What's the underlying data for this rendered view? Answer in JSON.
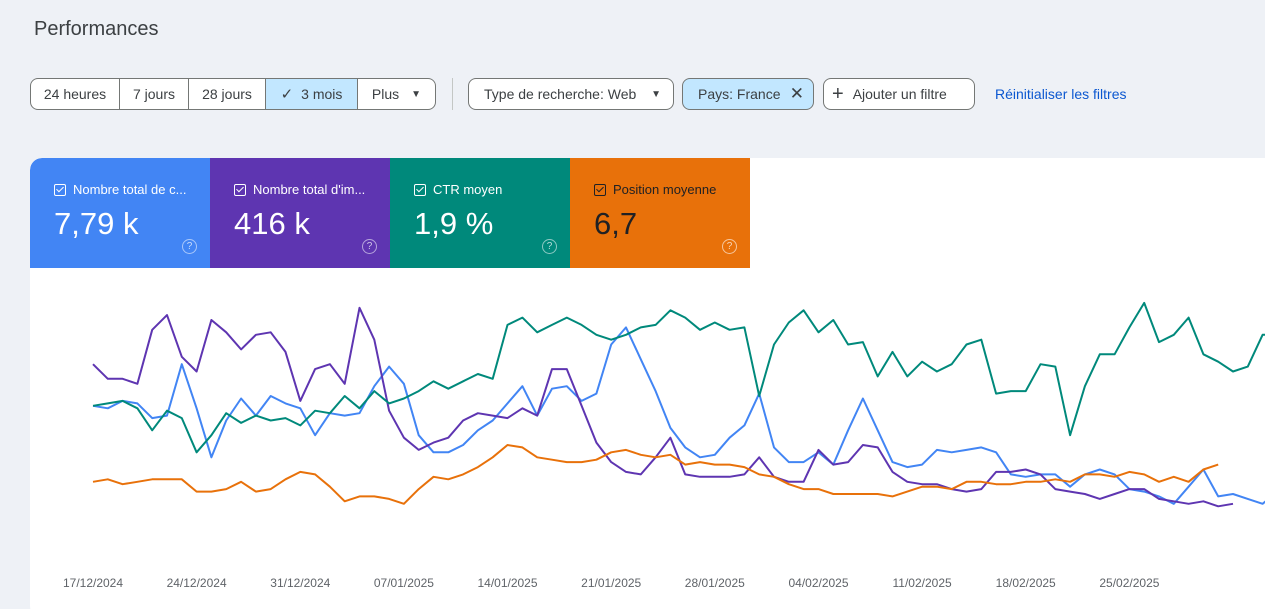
{
  "page": {
    "title": "Performances"
  },
  "date_range": {
    "options": [
      "24 heures",
      "7 jours",
      "28 jours",
      "3 mois",
      "Plus"
    ],
    "selected": "3 mois",
    "check_icon": "check-icon",
    "more_caret_icon": "caret-down-icon"
  },
  "filters": {
    "search_type_label": "Type de recherche: Web",
    "country_label": "Pays: France",
    "add_filter_label": "Ajouter un filtre",
    "reset_label": "Réinitialiser les filtres"
  },
  "metrics": [
    {
      "label": "Nombre total de c...",
      "value": "7,79 k",
      "color": "#4285f4"
    },
    {
      "label": "Nombre total d'im...",
      "value": "416 k",
      "color": "#5e35b1"
    },
    {
      "label": "CTR moyen",
      "value": "1,9 %",
      "color": "#00897b"
    },
    {
      "label": "Position moyenne",
      "value": "6,7",
      "color": "#e8710a"
    }
  ],
  "chart_data": {
    "type": "line",
    "x_tick_labels": [
      "17/12/2024",
      "24/12/2024",
      "31/12/2024",
      "07/01/2025",
      "14/01/2025",
      "21/01/2025",
      "28/01/2025",
      "04/02/2025",
      "11/02/2025",
      "18/02/2025",
      "25/02/2025"
    ],
    "series": [
      {
        "name": "Nombre total de c...",
        "color": "#4285f4",
        "values": [
          0.56,
          0.55,
          0.58,
          0.57,
          0.51,
          0.52,
          0.73,
          0.55,
          0.35,
          0.5,
          0.59,
          0.52,
          0.6,
          0.57,
          0.55,
          0.44,
          0.53,
          0.52,
          0.53,
          0.64,
          0.72,
          0.65,
          0.44,
          0.37,
          0.37,
          0.4,
          0.46,
          0.5,
          0.57,
          0.64,
          0.52,
          0.63,
          0.64,
          0.58,
          0.61,
          0.81,
          0.88,
          0.75,
          0.62,
          0.47,
          0.39,
          0.35,
          0.36,
          0.43,
          0.48,
          0.61,
          0.39,
          0.33,
          0.33,
          0.37,
          0.32,
          0.46,
          0.59,
          0.46,
          0.33,
          0.31,
          0.32,
          0.38,
          0.37,
          0.38,
          0.39,
          0.37,
          0.28,
          0.27,
          0.28,
          0.28,
          0.23,
          0.28,
          0.3,
          0.28,
          0.22,
          0.21,
          0.19,
          0.16,
          0.23,
          0.3,
          0.19,
          0.2,
          0.18,
          0.16,
          0.21
        ]
      },
      {
        "name": "Nombre total d'im...",
        "color": "#5e35b1",
        "values": [
          0.73,
          0.67,
          0.67,
          0.65,
          0.87,
          0.93,
          0.76,
          0.7,
          0.91,
          0.86,
          0.79,
          0.85,
          0.86,
          0.78,
          0.58,
          0.71,
          0.73,
          0.65,
          0.96,
          0.83,
          0.54,
          0.43,
          0.38,
          0.41,
          0.43,
          0.5,
          0.53,
          0.52,
          0.51,
          0.55,
          0.52,
          0.71,
          0.71,
          0.56,
          0.41,
          0.33,
          0.29,
          0.28,
          0.35,
          0.43,
          0.28,
          0.27,
          0.27,
          0.27,
          0.28,
          0.35,
          0.27,
          0.25,
          0.25,
          0.38,
          0.32,
          0.33,
          0.4,
          0.39,
          0.29,
          0.25,
          0.24,
          0.24,
          0.22,
          0.21,
          0.22,
          0.29,
          0.29,
          0.3,
          0.28,
          0.22,
          0.21,
          0.2,
          0.18,
          0.2,
          0.22,
          0.22,
          0.18,
          0.17,
          0.16,
          0.17,
          0.15,
          0.16
        ]
      },
      {
        "name": "CTR moyen",
        "color": "#00897b",
        "values": [
          0.56,
          0.57,
          0.58,
          0.55,
          0.46,
          0.54,
          0.51,
          0.37,
          0.44,
          0.53,
          0.49,
          0.52,
          0.5,
          0.51,
          0.48,
          0.54,
          0.53,
          0.6,
          0.55,
          0.62,
          0.57,
          0.59,
          0.62,
          0.66,
          0.63,
          0.66,
          0.69,
          0.67,
          0.89,
          0.92,
          0.86,
          0.89,
          0.92,
          0.89,
          0.85,
          0.83,
          0.85,
          0.88,
          0.89,
          0.95,
          0.92,
          0.87,
          0.9,
          0.87,
          0.88,
          0.6,
          0.81,
          0.9,
          0.95,
          0.86,
          0.91,
          0.81,
          0.82,
          0.68,
          0.78,
          0.68,
          0.74,
          0.7,
          0.73,
          0.81,
          0.83,
          0.61,
          0.62,
          0.62,
          0.73,
          0.72,
          0.44,
          0.64,
          0.77,
          0.77,
          0.88,
          0.98,
          0.82,
          0.85,
          0.92,
          0.77,
          0.74,
          0.7,
          0.72,
          0.85,
          0.85,
          0.66,
          0.76,
          0.79
        ]
      },
      {
        "name": "Position moyenne",
        "color": "#e8710a",
        "values": [
          0.25,
          0.26,
          0.24,
          0.25,
          0.26,
          0.26,
          0.26,
          0.21,
          0.21,
          0.22,
          0.25,
          0.21,
          0.22,
          0.26,
          0.29,
          0.28,
          0.23,
          0.17,
          0.19,
          0.19,
          0.18,
          0.16,
          0.22,
          0.27,
          0.26,
          0.28,
          0.31,
          0.35,
          0.4,
          0.39,
          0.35,
          0.34,
          0.33,
          0.33,
          0.34,
          0.37,
          0.38,
          0.36,
          0.35,
          0.36,
          0.32,
          0.33,
          0.32,
          0.32,
          0.31,
          0.28,
          0.27,
          0.24,
          0.22,
          0.22,
          0.2,
          0.2,
          0.2,
          0.2,
          0.19,
          0.21,
          0.23,
          0.23,
          0.22,
          0.25,
          0.25,
          0.24,
          0.24,
          0.25,
          0.25,
          0.26,
          0.25,
          0.28,
          0.28,
          0.27,
          0.29,
          0.28,
          0.25,
          0.27,
          0.25,
          0.3,
          0.32
        ]
      }
    ]
  }
}
